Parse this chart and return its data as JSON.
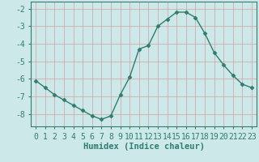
{
  "x": [
    0,
    1,
    2,
    3,
    4,
    5,
    6,
    7,
    8,
    9,
    10,
    11,
    12,
    13,
    14,
    15,
    16,
    17,
    18,
    19,
    20,
    21,
    22,
    23
  ],
  "y": [
    -6.1,
    -6.5,
    -6.9,
    -7.2,
    -7.5,
    -7.8,
    -8.1,
    -8.3,
    -8.1,
    -6.9,
    -5.9,
    -4.3,
    -4.1,
    -3.0,
    -2.6,
    -2.2,
    -2.2,
    -2.5,
    -3.4,
    -4.5,
    -5.2,
    -5.8,
    -6.3,
    -6.5
  ],
  "line_color": "#2e7d6e",
  "marker": "D",
  "marker_size": 2.5,
  "bg_color": "#cce8e8",
  "grid_color": "#d4a0a0",
  "grid_white_color": "#b8d8d8",
  "xlabel": "Humidex (Indice chaleur)",
  "xlim": [
    -0.5,
    23.5
  ],
  "ylim": [
    -8.7,
    -1.6
  ],
  "yticks": [
    -8,
    -7,
    -6,
    -5,
    -4,
    -3,
    -2
  ],
  "xticks": [
    0,
    1,
    2,
    3,
    4,
    5,
    6,
    7,
    8,
    9,
    10,
    11,
    12,
    13,
    14,
    15,
    16,
    17,
    18,
    19,
    20,
    21,
    22,
    23
  ],
  "xlabel_fontsize": 7.5,
  "tick_fontsize": 7,
  "text_color": "#2e7d6e",
  "spine_color": "#2e7d6e"
}
